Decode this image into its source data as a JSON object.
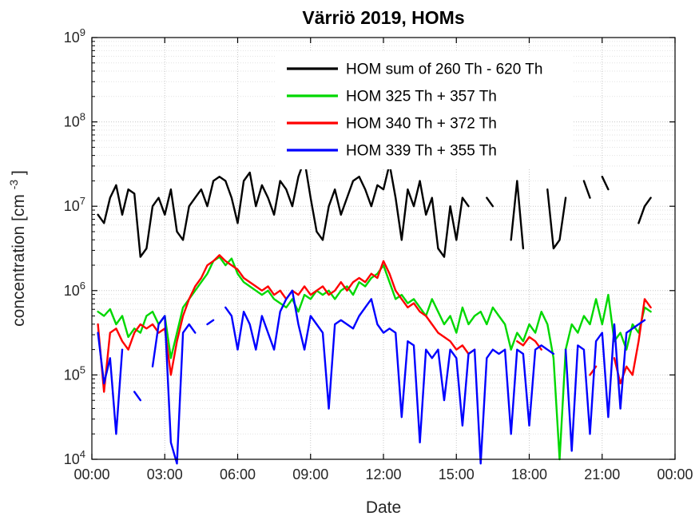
{
  "figure": {
    "title": "Värriö 2019, HOMs",
    "xlabel": "Date",
    "ylabel_prefix": "concentration [cm",
    "ylabel_superscript": "-3",
    "ylabel_suffix": "]"
  },
  "chart_data": {
    "type": "line",
    "title": "Värriö 2019, HOMs",
    "xlabel": "Date",
    "ylabel": "concentration [cm^-3]",
    "x_unit": "hours-of-day",
    "xlim": [
      0,
      24
    ],
    "x_ticks": [
      0,
      3,
      6,
      9,
      12,
      15,
      18,
      21,
      24
    ],
    "x_tick_labels": [
      "00:00",
      "03:00",
      "06:00",
      "09:00",
      "12:00",
      "15:00",
      "18:00",
      "21:00",
      "00:00"
    ],
    "y_scale": "log",
    "ylim_log10": [
      4,
      9
    ],
    "y_tick_exponents": [
      4,
      5,
      6,
      7,
      8,
      9
    ],
    "grid": {
      "major": true,
      "minor": true
    },
    "legend_position": "inside-top-center",
    "x_start_hours": 0.25,
    "x_step_hours": 0.25,
    "values_unit": "log10(concentration cm^-3)",
    "colors": {
      "major_grid": "#c7c7c7",
      "minor_grid": "#e2e2e2",
      "axis": "#000000",
      "tick_text": "#262626"
    },
    "series": [
      {
        "id": "hom-sum-260-620",
        "name": "HOM sum of 260 Th - 620 Th",
        "color": "#000000",
        "log10_values": [
          6.9,
          6.8,
          7.1,
          7.25,
          6.9,
          7.2,
          7.15,
          6.4,
          6.5,
          7.0,
          7.1,
          6.9,
          7.2,
          6.7,
          6.6,
          7.0,
          7.1,
          7.2,
          7.0,
          7.3,
          7.35,
          7.3,
          7.1,
          6.8,
          7.3,
          7.4,
          7.0,
          7.25,
          7.1,
          6.9,
          7.3,
          7.2,
          7.0,
          7.35,
          7.55,
          7.1,
          6.7,
          6.6,
          7.0,
          7.2,
          6.9,
          7.1,
          7.3,
          7.35,
          7.2,
          7.0,
          7.25,
          7.2,
          7.5,
          7.1,
          6.6,
          7.2,
          7.0,
          7.3,
          6.9,
          7.1,
          6.5,
          6.4,
          7.0,
          6.6,
          7.1,
          7.0,
          null,
          null,
          7.1,
          7.0,
          null,
          null,
          6.6,
          7.3,
          6.5,
          null,
          null,
          null,
          7.2,
          6.5,
          6.6,
          7.1,
          null,
          null,
          7.3,
          7.1,
          null,
          7.35,
          7.2,
          null,
          null,
          null,
          null,
          6.8,
          7.0,
          7.1
        ]
      },
      {
        "id": "hom-325-357",
        "name": "HOM 325 Th + 357 Th",
        "color": "#00d800",
        "log10_values": [
          5.75,
          5.7,
          5.78,
          5.6,
          5.7,
          5.45,
          5.55,
          5.5,
          5.7,
          5.75,
          5.6,
          5.7,
          5.2,
          5.5,
          5.8,
          5.9,
          6.0,
          6.1,
          6.2,
          6.35,
          6.4,
          6.3,
          6.38,
          6.2,
          6.1,
          6.05,
          6.0,
          5.95,
          6.0,
          5.9,
          5.85,
          5.8,
          5.9,
          5.75,
          5.95,
          5.9,
          6.0,
          5.95,
          6.0,
          5.9,
          6.0,
          6.05,
          5.95,
          6.1,
          6.05,
          6.15,
          6.2,
          6.3,
          6.1,
          5.9,
          5.95,
          5.85,
          5.9,
          5.8,
          5.7,
          5.9,
          5.75,
          5.6,
          5.7,
          5.5,
          5.8,
          5.6,
          5.7,
          5.75,
          5.6,
          5.8,
          5.7,
          5.6,
          5.3,
          5.5,
          5.4,
          5.6,
          5.5,
          5.75,
          5.6,
          5.2,
          4.0,
          5.3,
          5.6,
          5.5,
          5.7,
          5.6,
          5.9,
          5.6,
          5.95,
          5.4,
          5.5,
          5.3,
          5.6,
          5.5,
          5.8,
          5.75
        ]
      },
      {
        "id": "hom-340-372",
        "name": "HOM 340 Th + 372 Th",
        "color": "#ff0000",
        "log10_values": [
          5.6,
          4.8,
          5.5,
          5.55,
          5.4,
          5.3,
          5.5,
          5.6,
          5.55,
          5.6,
          5.5,
          5.55,
          5.0,
          5.4,
          5.7,
          5.9,
          6.05,
          6.15,
          6.3,
          6.35,
          6.42,
          6.35,
          6.3,
          6.25,
          6.15,
          6.1,
          6.05,
          6.0,
          6.05,
          5.95,
          6.0,
          5.9,
          6.0,
          5.95,
          6.05,
          5.95,
          6.0,
          6.05,
          5.95,
          6.0,
          6.1,
          6.0,
          6.1,
          6.15,
          6.1,
          6.2,
          6.15,
          6.35,
          6.2,
          6.0,
          5.9,
          5.8,
          5.85,
          5.75,
          5.7,
          5.6,
          5.5,
          5.45,
          5.4,
          5.3,
          5.35,
          5.25,
          5.3,
          null,
          5.4,
          null,
          null,
          null,
          null,
          5.4,
          5.35,
          5.45,
          5.4,
          5.3,
          null,
          null,
          null,
          null,
          null,
          null,
          null,
          5.0,
          5.1,
          null,
          null,
          5.2,
          4.9,
          5.1,
          5.0,
          5.4,
          5.9,
          5.8
        ]
      },
      {
        "id": "hom-339-355",
        "name": "HOM 339 Th + 355 Th",
        "color": "#0000ff",
        "log10_values": [
          5.5,
          4.9,
          5.2,
          4.3,
          5.3,
          null,
          4.8,
          4.7,
          null,
          5.1,
          5.6,
          5.7,
          4.2,
          3.95,
          5.5,
          5.6,
          5.5,
          null,
          5.6,
          5.65,
          null,
          5.8,
          5.7,
          5.3,
          5.75,
          5.6,
          5.3,
          5.7,
          5.5,
          5.3,
          5.75,
          5.9,
          6.0,
          5.6,
          5.3,
          5.7,
          5.6,
          5.5,
          4.6,
          5.6,
          5.65,
          5.6,
          5.55,
          5.7,
          5.8,
          5.9,
          5.6,
          5.5,
          5.55,
          5.5,
          4.5,
          5.4,
          5.35,
          4.2,
          5.3,
          5.2,
          5.3,
          4.7,
          5.3,
          5.2,
          4.4,
          5.25,
          5.3,
          3.95,
          5.2,
          5.3,
          5.25,
          5.3,
          4.3,
          5.3,
          5.25,
          4.4,
          5.3,
          5.35,
          5.3,
          5.25,
          null,
          5.3,
          4.1,
          5.35,
          5.3,
          4.3,
          5.4,
          5.5,
          4.5,
          5.6,
          4.6,
          5.5,
          5.55,
          5.6,
          5.65,
          null
        ]
      }
    ]
  }
}
